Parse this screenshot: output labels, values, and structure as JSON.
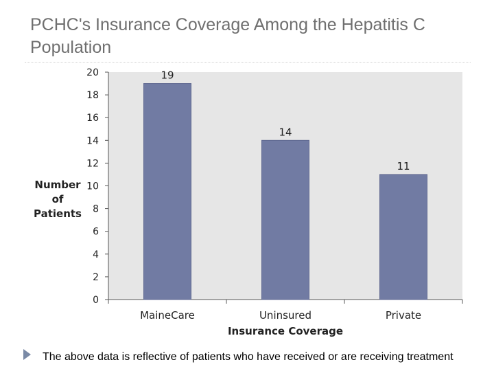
{
  "slide": {
    "title": "PCHC's Insurance Coverage Among the Hepatitis C Population",
    "footnote": "The above data is reflective of patients who have received or are receiving treatment"
  },
  "colors": {
    "bar": "#717ba3",
    "plot_background": "#e6e6e6",
    "bullet": "#7a8aa6"
  },
  "chart_data": {
    "type": "bar",
    "categories": [
      "MaineCare",
      "Uninsured",
      "Private"
    ],
    "values": [
      19,
      14,
      11
    ],
    "data_labels": [
      "19",
      "14",
      "11"
    ],
    "title": "",
    "xlabel": "Insurance Coverage",
    "ylabel_lines": [
      "Number",
      "of",
      "Patients"
    ],
    "ylim": [
      0,
      20
    ],
    "yticks": [
      0,
      2,
      4,
      6,
      8,
      10,
      12,
      14,
      16,
      18,
      20
    ],
    "grid": false,
    "legend": "none"
  }
}
